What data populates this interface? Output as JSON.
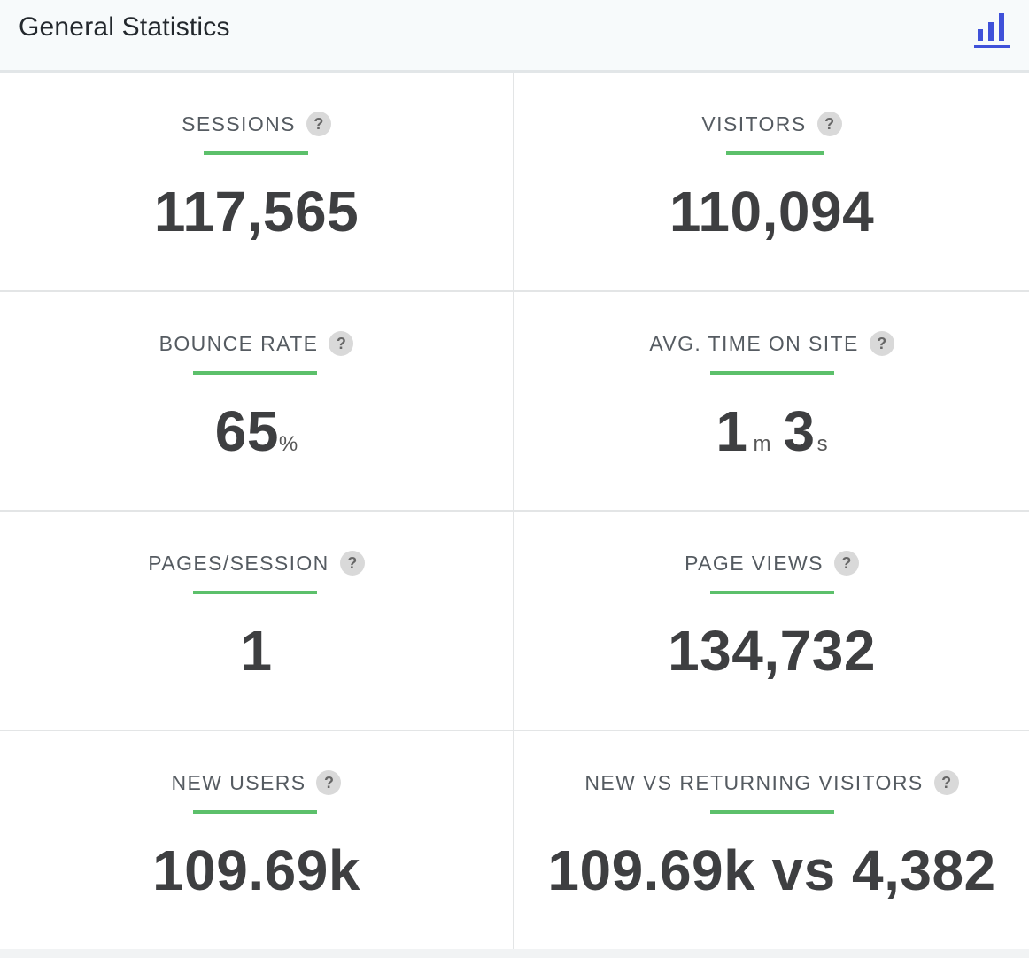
{
  "header": {
    "title": "General Statistics",
    "chart_toggle_icon": "bar-chart-icon"
  },
  "colors": {
    "accent_underline": "#5cc06b",
    "icon_blue": "#3f51d9",
    "value_text": "#3e3f41"
  },
  "stats": {
    "sessions": {
      "label": "SESSIONS",
      "value": "117,565",
      "help": "?"
    },
    "visitors": {
      "label": "VISITORS",
      "value": "110,094",
      "help": "?"
    },
    "bounce_rate": {
      "label": "BOUNCE RATE",
      "value": "65",
      "unit": "%",
      "help": "?"
    },
    "avg_time": {
      "label": "AVG. TIME ON SITE",
      "minutes": "1",
      "minutes_unit": "m",
      "seconds": "3",
      "seconds_unit": "s",
      "help": "?"
    },
    "pages_session": {
      "label": "PAGES/SESSION",
      "value": "1",
      "help": "?"
    },
    "page_views": {
      "label": "PAGE VIEWS",
      "value": "134,732",
      "help": "?"
    },
    "new_users": {
      "label": "NEW USERS",
      "value": "109.69k",
      "help": "?"
    },
    "new_vs_returning": {
      "label": "NEW VS RETURNING VISITORS",
      "value": "109.69k vs 4,382",
      "help": "?"
    }
  }
}
